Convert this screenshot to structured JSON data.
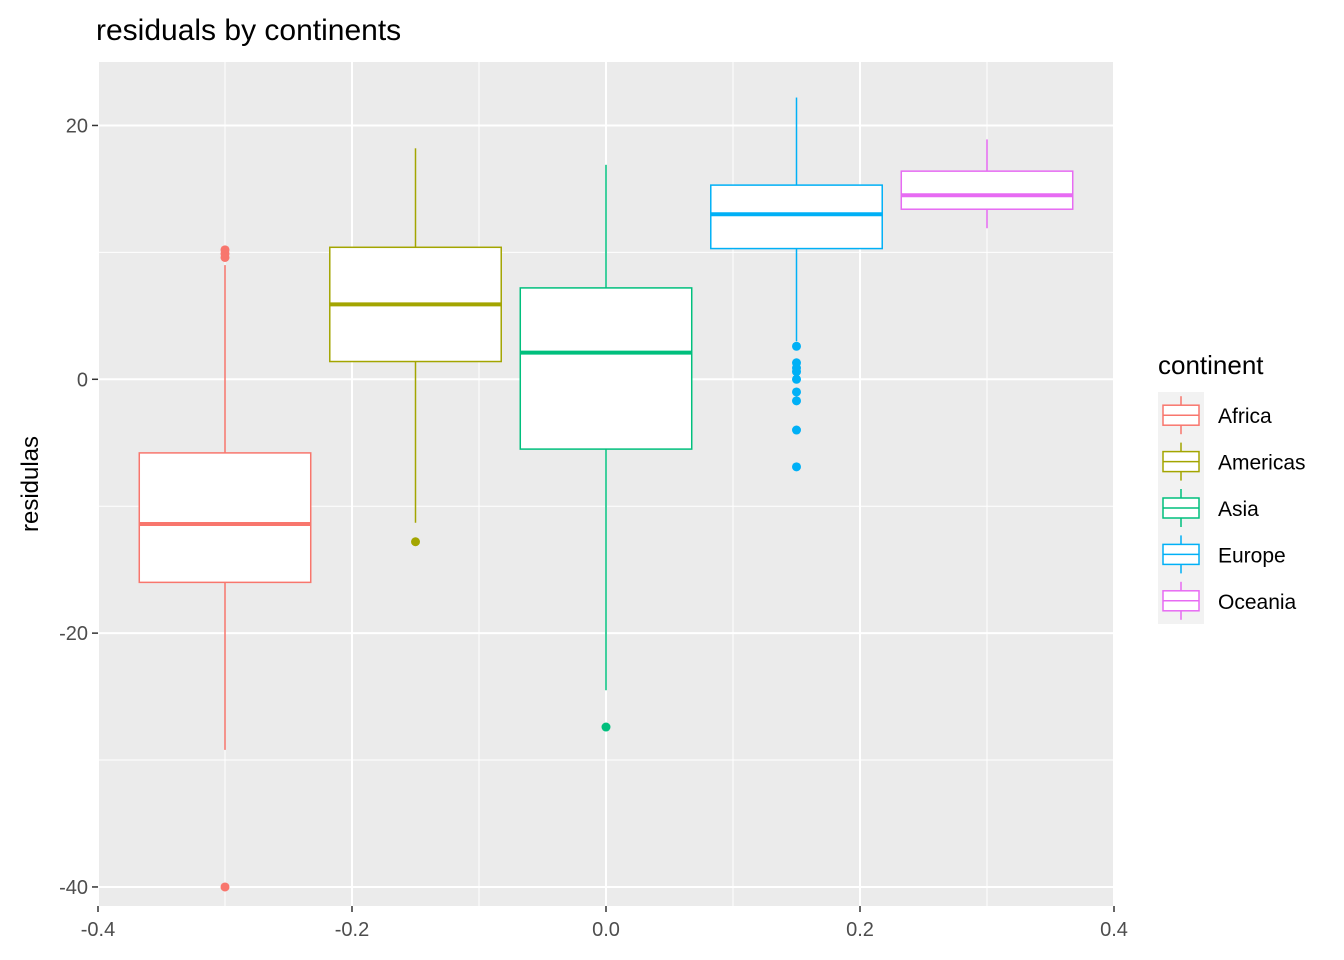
{
  "chart_data": {
    "type": "boxplot",
    "title": "residuals by continents",
    "xlabel": "",
    "ylabel": "residulas",
    "xlim": [
      -0.4,
      0.4
    ],
    "ylim": [
      -41.5,
      25
    ],
    "x_ticks": [
      -0.4,
      -0.2,
      0.0,
      0.2,
      0.4
    ],
    "x_tick_labels": [
      "-0.4",
      "-0.2",
      "0.0",
      "0.2",
      "0.4"
    ],
    "y_ticks": [
      -40,
      -20,
      0,
      20
    ],
    "y_tick_labels": [
      "-40",
      "-20",
      "0",
      "20"
    ],
    "grid": true,
    "legend": {
      "title": "continent",
      "position": "right"
    },
    "series": [
      {
        "name": "Africa",
        "color": "#F8766D",
        "x": -0.3,
        "box_width": 0.135,
        "whisker_low": -29.2,
        "q1": -16.0,
        "median": -11.4,
        "q3": -5.8,
        "whisker_high": 9.0,
        "outliers": [
          10.2,
          9.9,
          9.6,
          -40.0
        ]
      },
      {
        "name": "Americas",
        "color": "#A3A500",
        "x": -0.15,
        "box_width": 0.135,
        "whisker_low": -11.3,
        "q1": 1.4,
        "median": 5.9,
        "q3": 10.4,
        "whisker_high": 18.2,
        "outliers": [
          -12.8
        ]
      },
      {
        "name": "Asia",
        "color": "#00BF7D",
        "x": 0.0,
        "box_width": 0.135,
        "whisker_low": -24.5,
        "q1": -5.5,
        "median": 2.1,
        "q3": 7.2,
        "whisker_high": 16.9,
        "outliers": [
          -27.4
        ]
      },
      {
        "name": "Europe",
        "color": "#00B0F6",
        "x": 0.15,
        "box_width": 0.135,
        "whisker_low": 3.0,
        "q1": 10.3,
        "median": 13.0,
        "q3": 15.3,
        "whisker_high": 22.2,
        "outliers": [
          2.6,
          1.3,
          0.9,
          0.6,
          0.0,
          -1.0,
          -1.7,
          -4.0,
          -6.9
        ]
      },
      {
        "name": "Oceania",
        "color": "#E76BF3",
        "x": 0.3,
        "box_width": 0.135,
        "whisker_low": 11.9,
        "q1": 13.4,
        "median": 14.5,
        "q3": 16.4,
        "whisker_high": 18.9,
        "outliers": []
      }
    ]
  }
}
